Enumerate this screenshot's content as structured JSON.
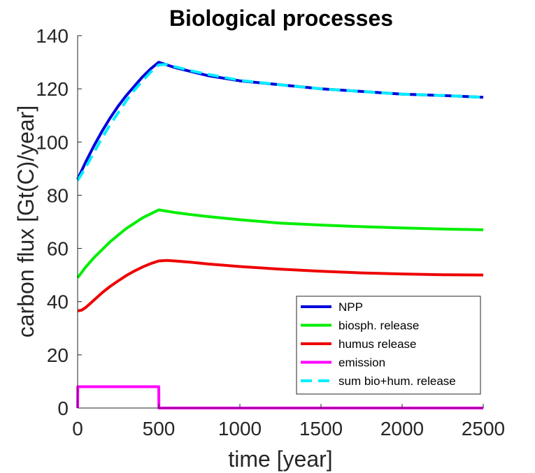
{
  "chart_data": {
    "type": "line",
    "title": "Biological processes",
    "xlabel": "time [year]",
    "ylabel": "carbon flux [Gt(C)/year]",
    "xlim": [
      0,
      2500
    ],
    "ylim": [
      0,
      140
    ],
    "xticks": [
      0,
      500,
      1000,
      1500,
      2000,
      2500
    ],
    "yticks": [
      0,
      20,
      40,
      60,
      80,
      100,
      120,
      140
    ],
    "grid": false,
    "legend_position": "bottom-right",
    "series": [
      {
        "name": "NPP",
        "color": "#0000dd",
        "dash": "solid",
        "x": [
          0,
          50,
          100,
          150,
          200,
          250,
          300,
          350,
          400,
          450,
          500,
          600,
          700,
          800,
          1000,
          1250,
          1500,
          1750,
          2000,
          2250,
          2500
        ],
        "y": [
          86,
          92.5,
          98.5,
          104,
          109,
          113.5,
          117.5,
          121,
          124.5,
          127.5,
          130,
          128,
          126.5,
          125,
          123,
          121.5,
          120,
          119,
          118,
          117.5,
          116.8
        ]
      },
      {
        "name": "biosph. release",
        "color": "#00ee00",
        "dash": "solid",
        "x": [
          0,
          50,
          100,
          150,
          200,
          250,
          300,
          350,
          400,
          450,
          500,
          600,
          700,
          800,
          1000,
          1250,
          1500,
          1750,
          2000,
          2250,
          2500
        ],
        "y": [
          49,
          53,
          56.5,
          59.5,
          62.5,
          65,
          67.5,
          69.5,
          71.5,
          73,
          74.5,
          73.5,
          72.7,
          72,
          70.8,
          69.5,
          68.8,
          68.2,
          67.7,
          67.3,
          67
        ]
      },
      {
        "name": "humus release",
        "color": "#ee0000",
        "dash": "solid",
        "x": [
          0,
          25,
          50,
          100,
          150,
          200,
          250,
          300,
          350,
          400,
          450,
          500,
          550,
          600,
          700,
          800,
          1000,
          1250,
          1500,
          1750,
          2000,
          2250,
          2500
        ],
        "y": [
          36.5,
          36.8,
          37.8,
          40.5,
          43.3,
          45.7,
          47.8,
          49.8,
          51.5,
          53,
          54.3,
          55.3,
          55.5,
          55.3,
          54.8,
          54.2,
          53.2,
          52.2,
          51.4,
          50.8,
          50.4,
          50.1,
          50
        ]
      },
      {
        "name": "emission",
        "color": "#ff00ff",
        "dash": "solid",
        "x": [
          0,
          1,
          500,
          501,
          2500
        ],
        "y": [
          0,
          8,
          8,
          0,
          0
        ]
      },
      {
        "name": "sum bio+hum. release",
        "color": "#00eeff",
        "dash": "dashed",
        "x": [
          0,
          50,
          100,
          150,
          200,
          250,
          300,
          350,
          400,
          450,
          500,
          550,
          600,
          700,
          800,
          1000,
          1250,
          1500,
          1750,
          2000,
          2250,
          2500
        ],
        "y": [
          85.5,
          90.5,
          96,
          101.5,
          106.5,
          111,
          115.5,
          119.5,
          123,
          126.3,
          129,
          129.2,
          128.3,
          126.8,
          125.5,
          123.2,
          121.5,
          120,
          119,
          118,
          117.5,
          116.8
        ]
      }
    ]
  }
}
